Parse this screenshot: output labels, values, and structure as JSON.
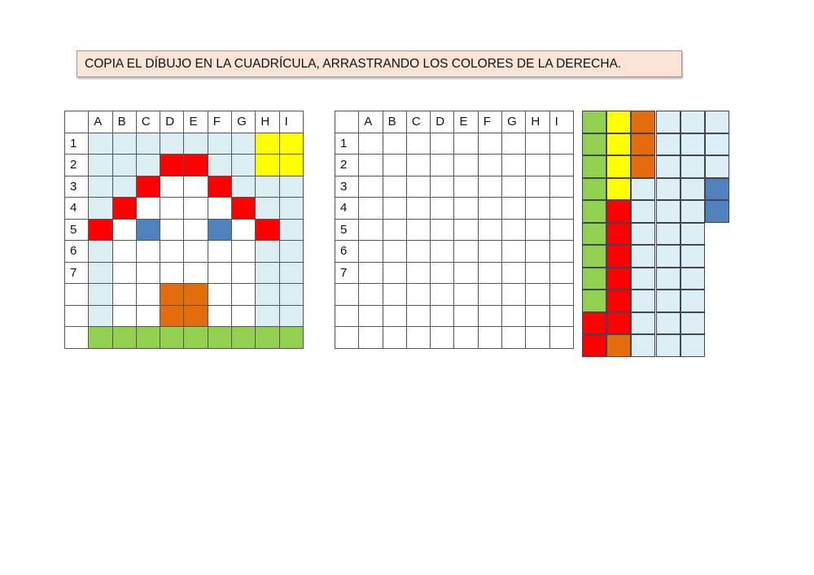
{
  "title": "COPIA EL DÍBUJO EN LA CUADRÍCULA, ARRASTRANDO LOS COLORES DE LA DERECHA.",
  "columns": [
    "A",
    "B",
    "C",
    "D",
    "E",
    "F",
    "G",
    "H",
    "I"
  ],
  "row_labels": [
    "1",
    "2",
    "3",
    "4",
    "5",
    "6",
    "7",
    "",
    "",
    ""
  ],
  "colors": {
    "g": "#92d050",
    "y": "#ffff00",
    "o": "#e46c0a",
    "l": "#dbeef4",
    "b": "#4f81bd",
    "r": "#ff0000",
    "w": "#ffffff"
  },
  "model_grid": [
    "lllllllyy",
    "lllrrllyy",
    "llrwwrlll",
    "lrwwwwrll",
    "rwbwwbwrl",
    "lwwwwwwll",
    "lwwwwwwll",
    "lwwoowwll",
    "lwwoowwll",
    "ggggggggg"
  ],
  "palette": [
    "gyolll",
    "gyolll",
    "gyolll",
    "gyllllb",
    "grlllb",
    "grlll",
    "grlll",
    "grlll",
    "grlll",
    "rrlll",
    "rolll"
  ]
}
